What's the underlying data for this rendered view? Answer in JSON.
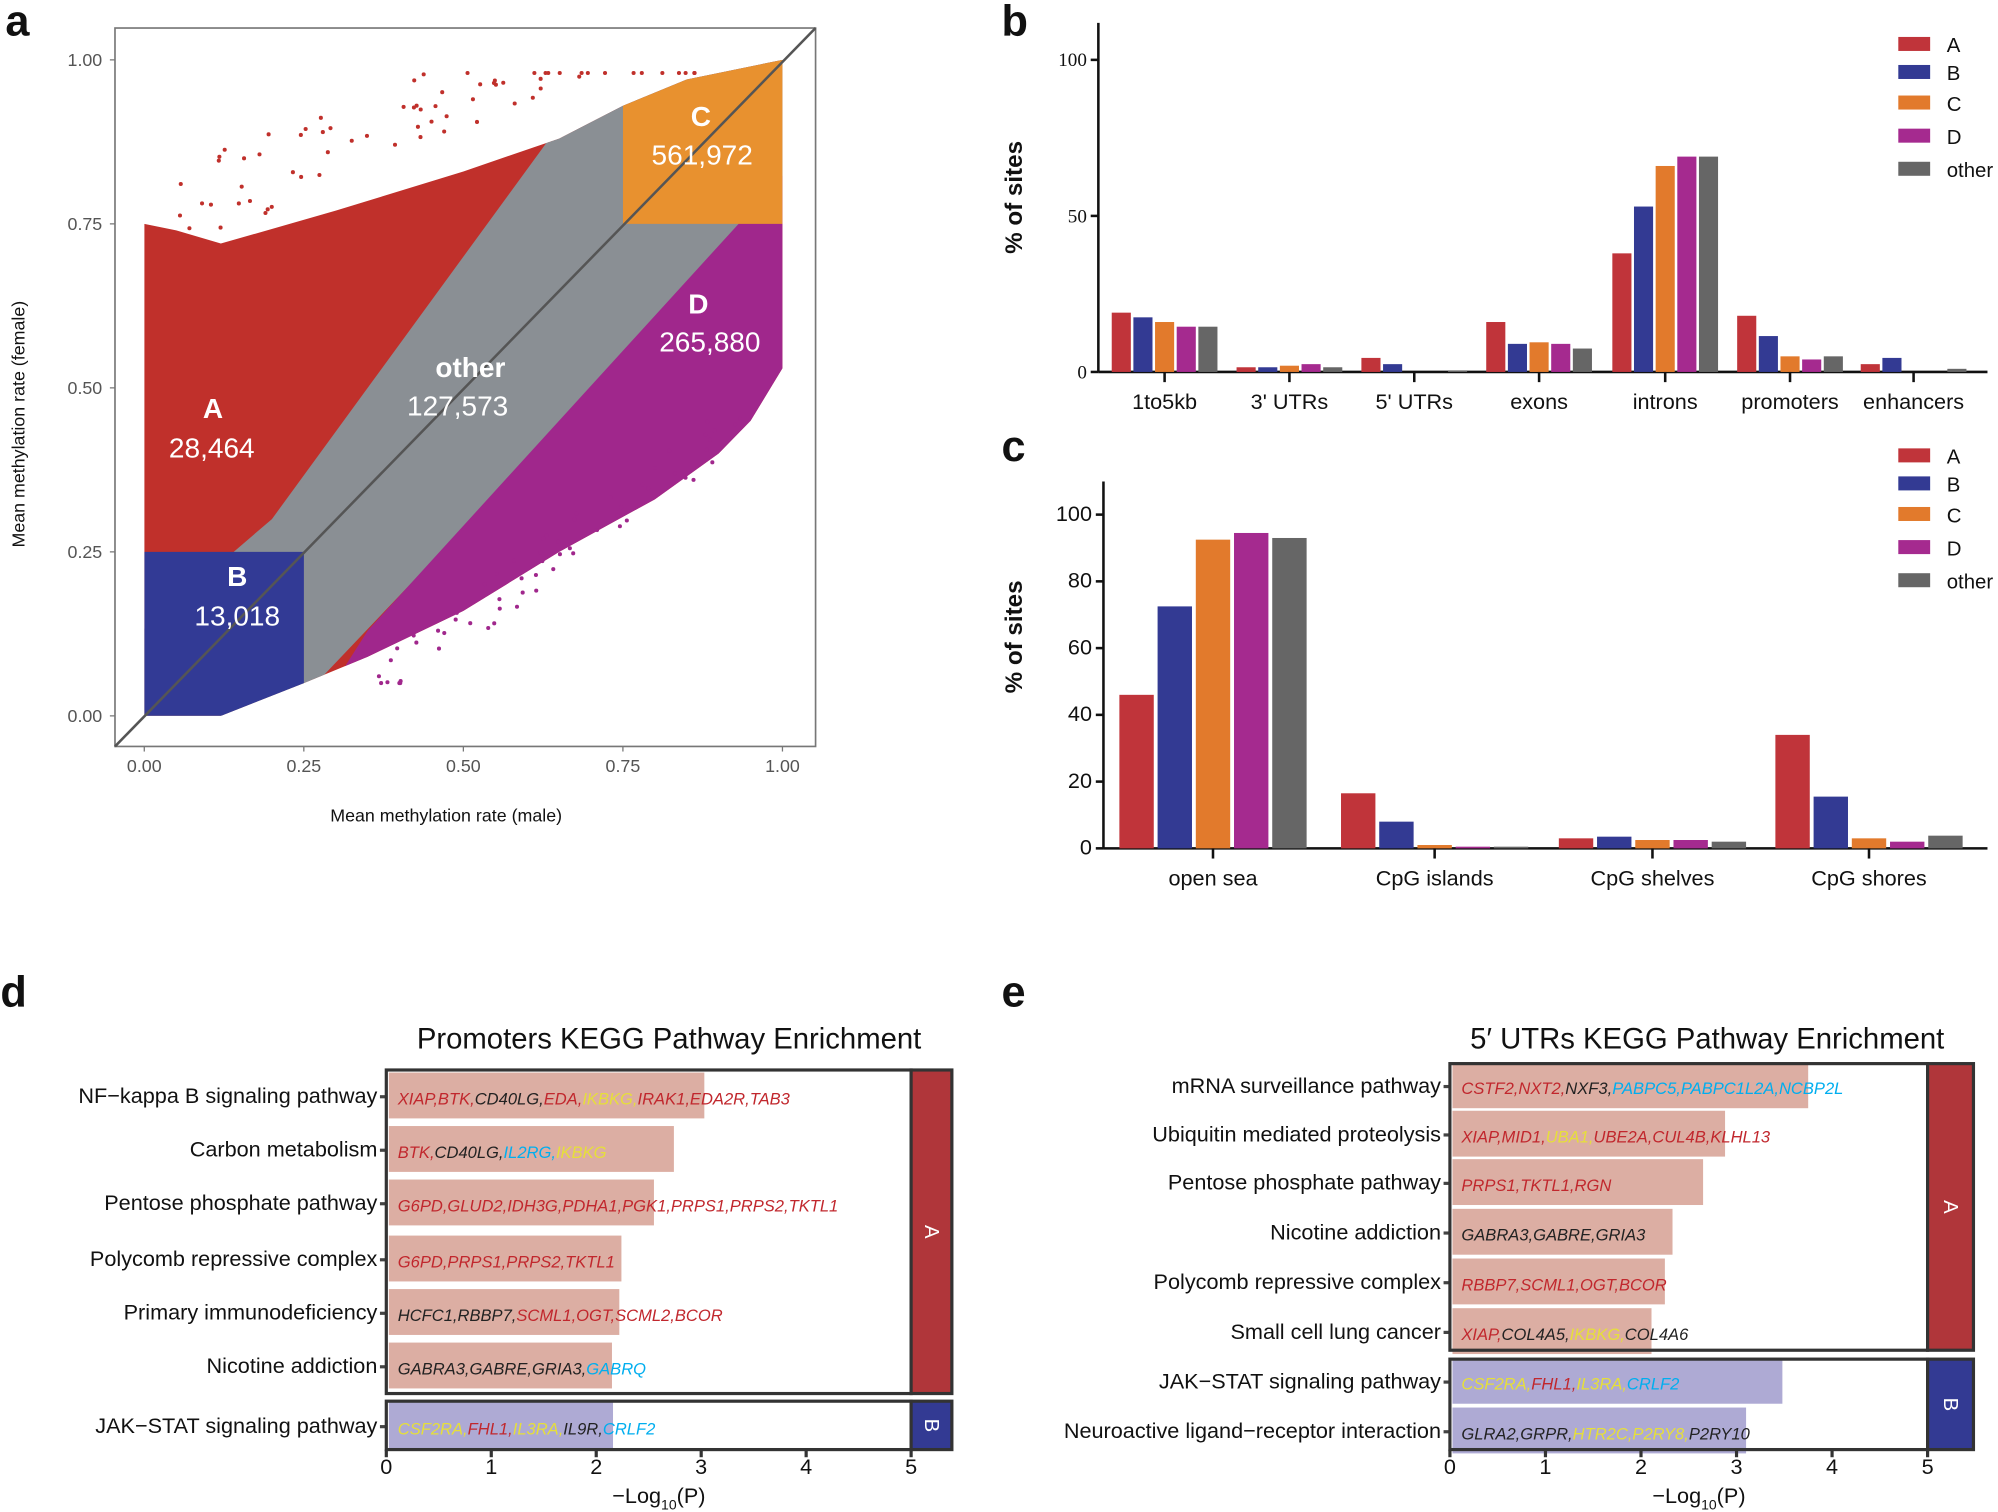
{
  "panel_labels": {
    "a": "a",
    "b": "b",
    "c": "c",
    "d": "d",
    "e": "e"
  },
  "colors": {
    "A": "#c0302b",
    "B": "#323a95",
    "C": "#e8912f",
    "D": "#a0278c",
    "other": "#8a8f94",
    "barA": "#c0343a",
    "barB": "#333a93",
    "barC": "#e27a2c",
    "barD": "#a52a8f",
    "barOther": "#666666",
    "geneRed": "#c1272d",
    "geneBlack": "#222222",
    "geneYellow": "#e6df3a",
    "geneBlue": "#00aeef",
    "fillA": "#dcaea3",
    "fillB": "#aeaad4",
    "stripA": "#b0363a",
    "stripB": "#333a93"
  },
  "chart_data": [
    {
      "id": "a",
      "type": "scatter",
      "xlabel": "Mean methylation rate (male)",
      "ylabel": "Mean methylation rate (female)",
      "xlim": [
        0,
        1
      ],
      "ylim": [
        0,
        1
      ],
      "xticks": [
        "0.00",
        "0.25",
        "0.50",
        "0.75",
        "1.00"
      ],
      "yticks": [
        "0.00",
        "0.25",
        "0.50",
        "0.75",
        "1.00"
      ],
      "regions": [
        {
          "name": "A",
          "count": "28,464"
        },
        {
          "name": "B",
          "count": "13,018"
        },
        {
          "name": "C",
          "count": "561,972"
        },
        {
          "name": "D",
          "count": "265,880"
        },
        {
          "name": "other",
          "count": "127,573"
        }
      ]
    },
    {
      "id": "b",
      "type": "bar",
      "ylabel": "% of  sites",
      "ylim": [
        0,
        100
      ],
      "yticks": [
        "0",
        "50",
        "100"
      ],
      "categories": [
        "1to5kb",
        "3' UTRs",
        "5' UTRs",
        "exons",
        "introns",
        "promoters",
        "enhancers"
      ],
      "legend": "top-right",
      "series": [
        {
          "name": "A",
          "values": [
            19,
            1.5,
            4.5,
            16,
            38,
            18,
            2.5
          ]
        },
        {
          "name": "B",
          "values": [
            17.5,
            1.5,
            2.5,
            9,
            53,
            11.5,
            4.5
          ]
        },
        {
          "name": "C",
          "values": [
            16,
            2,
            0,
            9.5,
            66,
            5,
            0
          ]
        },
        {
          "name": "D",
          "values": [
            14.5,
            2.5,
            0,
            9,
            69,
            4,
            0
          ]
        },
        {
          "name": "other",
          "values": [
            14.5,
            1.5,
            0.5,
            7.5,
            69,
            5,
            1
          ]
        }
      ]
    },
    {
      "id": "c",
      "type": "bar",
      "ylabel": "% of  sites",
      "ylim": [
        0,
        100
      ],
      "yticks": [
        "0",
        "20",
        "40",
        "60",
        "80",
        "100"
      ],
      "categories": [
        "open sea",
        "CpG islands",
        "CpG shelves",
        "CpG shores"
      ],
      "legend": "top-right",
      "series": [
        {
          "name": "A",
          "values": [
            46,
            16.5,
            3,
            34
          ]
        },
        {
          "name": "B",
          "values": [
            72.5,
            8,
            3.5,
            15.5
          ]
        },
        {
          "name": "C",
          "values": [
            92.5,
            1,
            2.5,
            3
          ]
        },
        {
          "name": "D",
          "values": [
            94.5,
            0.5,
            2.5,
            2
          ]
        },
        {
          "name": "other",
          "values": [
            93,
            0.5,
            2,
            3.8
          ]
        }
      ]
    },
    {
      "id": "d",
      "type": "bar",
      "orientation": "horizontal",
      "title": "Promoters KEGG Pathway Enrichment",
      "xlabel_main": "−Log",
      "xlabel_sub": "10",
      "xlabel_end": "(P)",
      "xlim": [
        0,
        5
      ],
      "xticks": [
        "0",
        "1",
        "2",
        "3",
        "4",
        "5"
      ],
      "groups": [
        {
          "name": "A",
          "rows": [
            {
              "pathway": "NF−kappa B signaling pathway",
              "value": 3.03,
              "genes": [
                [
                  "XIAP,",
                  "r"
                ],
                [
                  "BTK,",
                  "r"
                ],
                [
                  "CD40LG,",
                  "k"
                ],
                [
                  "EDA,",
                  "r"
                ],
                [
                  "IKBKG,",
                  "y"
                ],
                [
                  "IRAK1,",
                  "r"
                ],
                [
                  "EDA2R,",
                  "r"
                ],
                [
                  "TAB3",
                  "r"
                ]
              ]
            },
            {
              "pathway": "Carbon metabolism",
              "value": 2.74,
              "genes": [
                [
                  "BTK,",
                  "r"
                ],
                [
                  "CD40LG,",
                  "k"
                ],
                [
                  "IL2RG,",
                  "b"
                ],
                [
                  "IKBKG",
                  "y"
                ]
              ]
            },
            {
              "pathway": "Pentose phosphate pathway",
              "value": 2.55,
              "genes": [
                [
                  "G6PD,GLUD2,IDH3G,PDHA1,PGK1,PRPS1,PRPS2,TKTL1",
                  "r"
                ]
              ]
            },
            {
              "pathway": "Polycomb repressive complex",
              "value": 2.24,
              "genes": [
                [
                  "G6PD,PRPS1,PRPS2,TKTL1",
                  "r"
                ]
              ]
            },
            {
              "pathway": "Primary immunodeficiency",
              "value": 2.22,
              "genes": [
                [
                  "HCFC1,RBBP7,",
                  "k"
                ],
                [
                  "SCML1,OGT,SCML2,BCOR",
                  "r"
                ]
              ]
            },
            {
              "pathway": "Nicotine addiction",
              "value": 2.15,
              "genes": [
                [
                  "GABRA3,GABRE,GRIA3,",
                  "k"
                ],
                [
                  "GABRQ",
                  "b"
                ]
              ]
            }
          ]
        },
        {
          "name": "B",
          "rows": [
            {
              "pathway": "JAK−STAT signaling pathway",
              "value": 2.16,
              "genes": [
                [
                  "CSF2RA,",
                  "y"
                ],
                [
                  "FHL1,",
                  "r"
                ],
                [
                  "IL3RA,",
                  "y"
                ],
                [
                  "IL9R,",
                  "k"
                ],
                [
                  "CRLF2",
                  "b"
                ]
              ]
            }
          ]
        }
      ]
    },
    {
      "id": "e",
      "type": "bar",
      "orientation": "horizontal",
      "title": "5′ UTRs KEGG Pathway Enrichment",
      "xlabel_main": "−Log",
      "xlabel_sub": "10",
      "xlabel_end": "(P)",
      "xlim": [
        0,
        5
      ],
      "xticks": [
        "0",
        "1",
        "2",
        "3",
        "4",
        "5"
      ],
      "groups": [
        {
          "name": "A",
          "rows": [
            {
              "pathway": "mRNA surveillance pathway",
              "value": 3.75,
              "genes": [
                [
                  "CSTF2,NXT2,",
                  "r"
                ],
                [
                  "NXF3,",
                  "k"
                ],
                [
                  "PABPC5,PABPC1L2A,NCBP2L",
                  "b"
                ]
              ]
            },
            {
              "pathway": "Ubiquitin mediated proteolysis",
              "value": 2.88,
              "genes": [
                [
                  "XIAP,MID1,",
                  "r"
                ],
                [
                  "UBA1,",
                  "y"
                ],
                [
                  "UBE2A,CUL4B,KLHL13",
                  "r"
                ]
              ]
            },
            {
              "pathway": "Pentose phosphate pathway",
              "value": 2.65,
              "genes": [
                [
                  "PRPS1,TKTL1,RGN",
                  "r"
                ]
              ]
            },
            {
              "pathway": "Nicotine addiction",
              "value": 2.33,
              "genes": [
                [
                  "GABRA3,GABRE,GRIA3",
                  "k"
                ]
              ]
            },
            {
              "pathway": "Polycomb repressive complex",
              "value": 2.25,
              "genes": [
                [
                  "RBBP7,SCML1,OGT,BCOR",
                  "r"
                ]
              ]
            },
            {
              "pathway": "Small cell lung cancer",
              "value": 2.11,
              "genes": [
                [
                  "XIAP,",
                  "r"
                ],
                [
                  "COL4A5,",
                  "k"
                ],
                [
                  "IKBKG,",
                  "y"
                ],
                [
                  "COL4A6",
                  "k"
                ]
              ]
            }
          ]
        },
        {
          "name": "B",
          "rows": [
            {
              "pathway": "JAK−STAT signaling pathway",
              "value": 3.48,
              "genes": [
                [
                  "CSF2RA,",
                  "y"
                ],
                [
                  "FHL1,",
                  "r"
                ],
                [
                  "IL3RA,",
                  "y"
                ],
                [
                  "CRLF2",
                  "b"
                ]
              ]
            },
            {
              "pathway": "Neuroactive ligand−receptor interaction",
              "value": 3.1,
              "genes": [
                [
                  "GLRA2,GRPR,",
                  "k"
                ],
                [
                  "HTR2C,P2RY8,",
                  "y"
                ],
                [
                  "P2RY10",
                  "k"
                ]
              ]
            }
          ]
        }
      ]
    }
  ]
}
